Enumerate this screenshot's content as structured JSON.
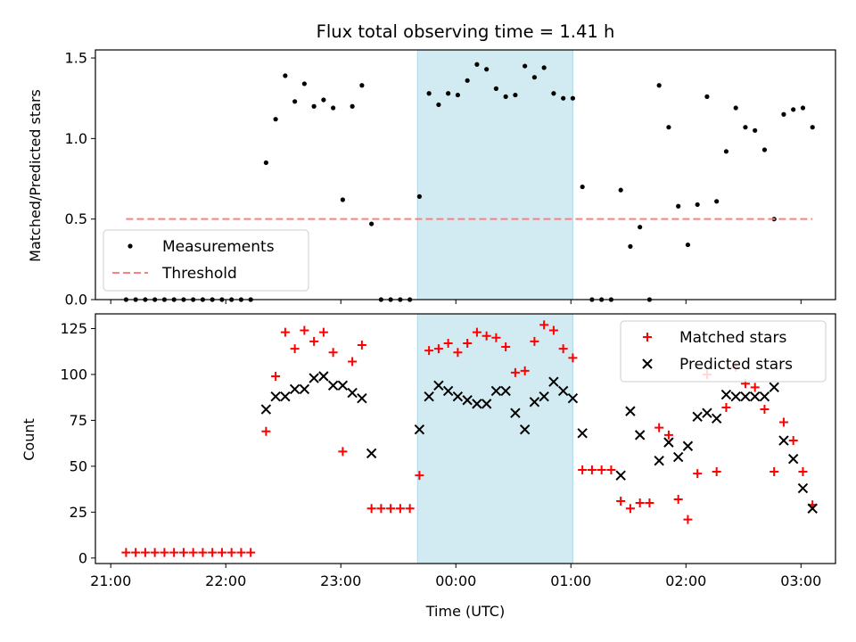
{
  "chart_data": [
    {
      "type": "scatter",
      "title": "Flux total observing time = 1.41 h",
      "ylabel": "Matched/Predicted stars",
      "ylim": [
        0,
        1.55
      ],
      "yticks": [
        0,
        0.5,
        1.0,
        1.5
      ],
      "ytick_labels": [
        "0.0",
        "0.5",
        "1.0",
        "1.5"
      ],
      "xlim": [
        "20:52",
        "03:18"
      ],
      "xticks": [
        "21:00",
        "22:00",
        "23:00",
        "00:00",
        "01:00",
        "02:00",
        "03:00"
      ],
      "shaded_interval": [
        "23:40",
        "01:01"
      ],
      "shaded_color": "#add8e6",
      "legend_placement": "lower-left",
      "series": [
        {
          "name": "Measurements",
          "marker": "dot",
          "color": "#000000",
          "points": [
            {
              "x": "21:08",
              "y": 0
            },
            {
              "x": "21:13",
              "y": 0
            },
            {
              "x": "21:18",
              "y": 0
            },
            {
              "x": "21:23",
              "y": 0
            },
            {
              "x": "21:28",
              "y": 0
            },
            {
              "x": "21:33",
              "y": 0
            },
            {
              "x": "21:38",
              "y": 0
            },
            {
              "x": "21:43",
              "y": 0
            },
            {
              "x": "21:48",
              "y": 0
            },
            {
              "x": "21:53",
              "y": 0
            },
            {
              "x": "21:58",
              "y": 0
            },
            {
              "x": "22:03",
              "y": 0
            },
            {
              "x": "22:08",
              "y": 0
            },
            {
              "x": "22:13",
              "y": 0
            },
            {
              "x": "22:21",
              "y": 0.85
            },
            {
              "x": "22:26",
              "y": 1.12
            },
            {
              "x": "22:31",
              "y": 1.39
            },
            {
              "x": "22:36",
              "y": 1.23
            },
            {
              "x": "22:41",
              "y": 1.34
            },
            {
              "x": "22:46",
              "y": 1.2
            },
            {
              "x": "22:51",
              "y": 1.24
            },
            {
              "x": "22:56",
              "y": 1.19
            },
            {
              "x": "23:01",
              "y": 0.62
            },
            {
              "x": "23:06",
              "y": 1.2
            },
            {
              "x": "23:11",
              "y": 1.33
            },
            {
              "x": "23:16",
              "y": 0.47
            },
            {
              "x": "23:21",
              "y": 0
            },
            {
              "x": "23:26",
              "y": 0
            },
            {
              "x": "23:31",
              "y": 0
            },
            {
              "x": "23:36",
              "y": 0
            },
            {
              "x": "23:41",
              "y": 0.64
            },
            {
              "x": "23:46",
              "y": 1.28
            },
            {
              "x": "23:51",
              "y": 1.21
            },
            {
              "x": "23:56",
              "y": 1.28
            },
            {
              "x": "00:01",
              "y": 1.27
            },
            {
              "x": "00:06",
              "y": 1.36
            },
            {
              "x": "00:11",
              "y": 1.46
            },
            {
              "x": "00:16",
              "y": 1.43
            },
            {
              "x": "00:21",
              "y": 1.31
            },
            {
              "x": "00:26",
              "y": 1.26
            },
            {
              "x": "00:31",
              "y": 1.27
            },
            {
              "x": "00:36",
              "y": 1.45
            },
            {
              "x": "00:41",
              "y": 1.38
            },
            {
              "x": "00:46",
              "y": 1.44
            },
            {
              "x": "00:51",
              "y": 1.28
            },
            {
              "x": "00:56",
              "y": 1.25
            },
            {
              "x": "01:01",
              "y": 1.25
            },
            {
              "x": "01:06",
              "y": 0.7
            },
            {
              "x": "01:11",
              "y": 0
            },
            {
              "x": "01:16",
              "y": 0
            },
            {
              "x": "01:21",
              "y": 0
            },
            {
              "x": "01:26",
              "y": 0.68
            },
            {
              "x": "01:31",
              "y": 0.33
            },
            {
              "x": "01:36",
              "y": 0.45
            },
            {
              "x": "01:41",
              "y": 0
            },
            {
              "x": "01:46",
              "y": 1.33
            },
            {
              "x": "01:51",
              "y": 1.07
            },
            {
              "x": "01:56",
              "y": 0.58
            },
            {
              "x": "02:01",
              "y": 0.34
            },
            {
              "x": "02:06",
              "y": 0.59
            },
            {
              "x": "02:11",
              "y": 1.26
            },
            {
              "x": "02:16",
              "y": 0.61
            },
            {
              "x": "02:21",
              "y": 0.92
            },
            {
              "x": "02:26",
              "y": 1.19
            },
            {
              "x": "02:31",
              "y": 1.07
            },
            {
              "x": "02:36",
              "y": 1.05
            },
            {
              "x": "02:41",
              "y": 0.93
            },
            {
              "x": "02:46",
              "y": 0.5
            },
            {
              "x": "02:51",
              "y": 1.15
            },
            {
              "x": "02:56",
              "y": 1.18
            },
            {
              "x": "03:01",
              "y": 1.19
            },
            {
              "x": "03:06",
              "y": 1.07
            }
          ]
        },
        {
          "name": "Threshold",
          "marker": "dashed-line",
          "color": "#ff7f7f",
          "points": [
            {
              "x": "21:08",
              "y": 0.5
            },
            {
              "x": "03:06",
              "y": 0.5
            }
          ]
        }
      ]
    },
    {
      "type": "scatter",
      "xlabel": "Time (UTC)",
      "ylabel": "Count",
      "ylim": [
        -3,
        133
      ],
      "yticks": [
        0,
        25,
        50,
        75,
        100,
        125
      ],
      "ytick_labels": [
        "0",
        "25",
        "50",
        "75",
        "100",
        "125"
      ],
      "xlim": [
        "20:52",
        "03:18"
      ],
      "xticks": [
        "21:00",
        "22:00",
        "23:00",
        "00:00",
        "01:00",
        "02:00",
        "03:00"
      ],
      "xtick_labels": [
        "21:00",
        "22:00",
        "23:00",
        "00:00",
        "01:00",
        "02:00",
        "03:00"
      ],
      "shaded_interval": [
        "23:40",
        "01:01"
      ],
      "shaded_color": "#add8e6",
      "legend_placement": "upper-right",
      "series": [
        {
          "name": "Matched stars",
          "marker": "plus",
          "color": "#ff0000",
          "points": [
            {
              "x": "21:08",
              "y": 3
            },
            {
              "x": "21:13",
              "y": 3
            },
            {
              "x": "21:18",
              "y": 3
            },
            {
              "x": "21:23",
              "y": 3
            },
            {
              "x": "21:28",
              "y": 3
            },
            {
              "x": "21:33",
              "y": 3
            },
            {
              "x": "21:38",
              "y": 3
            },
            {
              "x": "21:43",
              "y": 3
            },
            {
              "x": "21:48",
              "y": 3
            },
            {
              "x": "21:53",
              "y": 3
            },
            {
              "x": "21:58",
              "y": 3
            },
            {
              "x": "22:03",
              "y": 3
            },
            {
              "x": "22:08",
              "y": 3
            },
            {
              "x": "22:13",
              "y": 3
            },
            {
              "x": "22:21",
              "y": 69
            },
            {
              "x": "22:26",
              "y": 99
            },
            {
              "x": "22:31",
              "y": 123
            },
            {
              "x": "22:36",
              "y": 114
            },
            {
              "x": "22:41",
              "y": 124
            },
            {
              "x": "22:46",
              "y": 118
            },
            {
              "x": "22:51",
              "y": 123
            },
            {
              "x": "22:56",
              "y": 112
            },
            {
              "x": "23:01",
              "y": 58
            },
            {
              "x": "23:06",
              "y": 107
            },
            {
              "x": "23:11",
              "y": 116
            },
            {
              "x": "23:16",
              "y": 27
            },
            {
              "x": "23:21",
              "y": 27
            },
            {
              "x": "23:26",
              "y": 27
            },
            {
              "x": "23:31",
              "y": 27
            },
            {
              "x": "23:36",
              "y": 27
            },
            {
              "x": "23:41",
              "y": 45
            },
            {
              "x": "23:46",
              "y": 113
            },
            {
              "x": "23:51",
              "y": 114
            },
            {
              "x": "23:56",
              "y": 117
            },
            {
              "x": "00:01",
              "y": 112
            },
            {
              "x": "00:06",
              "y": 117
            },
            {
              "x": "00:11",
              "y": 123
            },
            {
              "x": "00:16",
              "y": 121
            },
            {
              "x": "00:21",
              "y": 120
            },
            {
              "x": "00:26",
              "y": 115
            },
            {
              "x": "00:31",
              "y": 101
            },
            {
              "x": "00:36",
              "y": 102
            },
            {
              "x": "00:41",
              "y": 118
            },
            {
              "x": "00:46",
              "y": 127
            },
            {
              "x": "00:51",
              "y": 124
            },
            {
              "x": "00:56",
              "y": 114
            },
            {
              "x": "01:01",
              "y": 109
            },
            {
              "x": "01:06",
              "y": 48
            },
            {
              "x": "01:11",
              "y": 48
            },
            {
              "x": "01:16",
              "y": 48
            },
            {
              "x": "01:21",
              "y": 48
            },
            {
              "x": "01:26",
              "y": 31
            },
            {
              "x": "01:31",
              "y": 27
            },
            {
              "x": "01:36",
              "y": 30
            },
            {
              "x": "01:41",
              "y": 30
            },
            {
              "x": "01:46",
              "y": 71
            },
            {
              "x": "01:51",
              "y": 67
            },
            {
              "x": "01:56",
              "y": 32
            },
            {
              "x": "02:01",
              "y": 21
            },
            {
              "x": "02:06",
              "y": 46
            },
            {
              "x": "02:11",
              "y": 100
            },
            {
              "x": "02:16",
              "y": 47
            },
            {
              "x": "02:21",
              "y": 82
            },
            {
              "x": "02:26",
              "y": 104
            },
            {
              "x": "02:31",
              "y": 95
            },
            {
              "x": "02:36",
              "y": 93
            },
            {
              "x": "02:41",
              "y": 81
            },
            {
              "x": "02:46",
              "y": 47
            },
            {
              "x": "02:51",
              "y": 74
            },
            {
              "x": "02:56",
              "y": 64
            },
            {
              "x": "03:01",
              "y": 47
            },
            {
              "x": "03:06",
              "y": 29
            }
          ]
        },
        {
          "name": "Predicted stars",
          "marker": "x",
          "color": "#000000",
          "points": [
            {
              "x": "22:21",
              "y": 81
            },
            {
              "x": "22:26",
              "y": 88
            },
            {
              "x": "22:31",
              "y": 88
            },
            {
              "x": "22:36",
              "y": 92
            },
            {
              "x": "22:41",
              "y": 92
            },
            {
              "x": "22:46",
              "y": 98
            },
            {
              "x": "22:51",
              "y": 99
            },
            {
              "x": "22:56",
              "y": 94
            },
            {
              "x": "23:01",
              "y": 94
            },
            {
              "x": "23:06",
              "y": 90
            },
            {
              "x": "23:11",
              "y": 87
            },
            {
              "x": "23:16",
              "y": 57
            },
            {
              "x": "23:41",
              "y": 70
            },
            {
              "x": "23:46",
              "y": 88
            },
            {
              "x": "23:51",
              "y": 94
            },
            {
              "x": "23:56",
              "y": 91
            },
            {
              "x": "00:01",
              "y": 88
            },
            {
              "x": "00:06",
              "y": 86
            },
            {
              "x": "00:11",
              "y": 84
            },
            {
              "x": "00:16",
              "y": 84
            },
            {
              "x": "00:21",
              "y": 91
            },
            {
              "x": "00:26",
              "y": 91
            },
            {
              "x": "00:31",
              "y": 79
            },
            {
              "x": "00:36",
              "y": 70
            },
            {
              "x": "00:41",
              "y": 85
            },
            {
              "x": "00:46",
              "y": 88
            },
            {
              "x": "00:51",
              "y": 96
            },
            {
              "x": "00:56",
              "y": 91
            },
            {
              "x": "01:01",
              "y": 87
            },
            {
              "x": "01:06",
              "y": 68
            },
            {
              "x": "01:26",
              "y": 45
            },
            {
              "x": "01:31",
              "y": 80
            },
            {
              "x": "01:36",
              "y": 67
            },
            {
              "x": "01:46",
              "y": 53
            },
            {
              "x": "01:51",
              "y": 63
            },
            {
              "x": "01:56",
              "y": 55
            },
            {
              "x": "02:01",
              "y": 61
            },
            {
              "x": "02:06",
              "y": 77
            },
            {
              "x": "02:11",
              "y": 79
            },
            {
              "x": "02:16",
              "y": 76
            },
            {
              "x": "02:21",
              "y": 89
            },
            {
              "x": "02:26",
              "y": 88
            },
            {
              "x": "02:31",
              "y": 88
            },
            {
              "x": "02:36",
              "y": 88
            },
            {
              "x": "02:41",
              "y": 88
            },
            {
              "x": "02:46",
              "y": 93
            },
            {
              "x": "02:51",
              "y": 64
            },
            {
              "x": "02:56",
              "y": 54
            },
            {
              "x": "03:01",
              "y": 38
            },
            {
              "x": "03:06",
              "y": 27
            }
          ]
        }
      ]
    }
  ]
}
